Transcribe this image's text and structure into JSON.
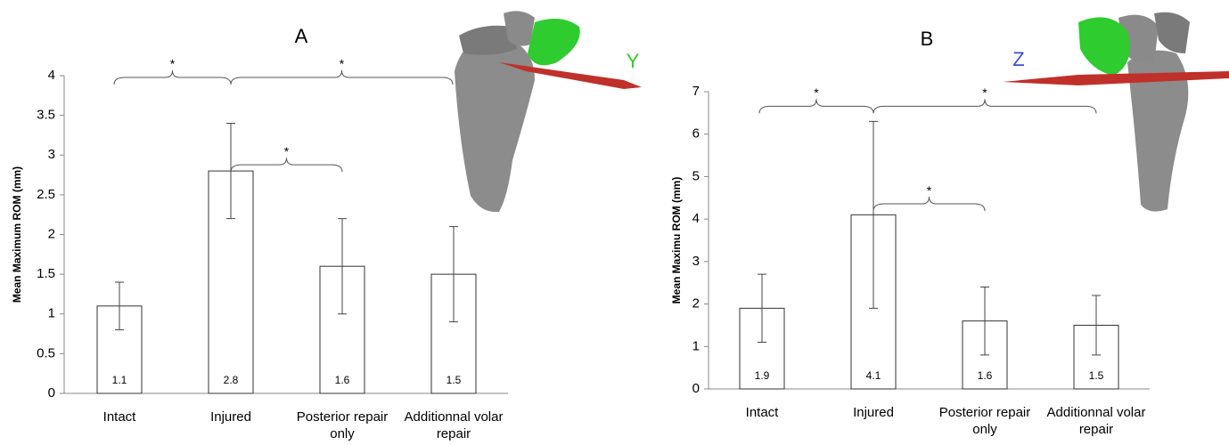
{
  "chart_data": [
    {
      "type": "bar",
      "title": "A",
      "y_label": "Mean Maximum ROM (mm)",
      "categories": [
        "Intact",
        "Injured",
        "Posterior repair only",
        "Additionnal volar repair"
      ],
      "values": [
        1.1,
        2.8,
        1.6,
        1.5
      ],
      "errors": [
        0.3,
        0.6,
        0.6,
        0.6
      ],
      "color": "#ffffff",
      "ylim": [
        0,
        4
      ],
      "yticks": [
        0,
        0.5,
        1,
        1.5,
        2,
        2.5,
        3,
        3.5,
        4
      ],
      "significance": [
        {
          "from": 0,
          "to": 1,
          "label": "*"
        },
        {
          "from": 1,
          "to": 3,
          "label": "*"
        },
        {
          "from": 1,
          "to": 2,
          "label": "*"
        }
      ],
      "axis_marker": "Y"
    },
    {
      "type": "bar",
      "title": "B",
      "y_label": "Mean Maximu ROM (mm)",
      "categories": [
        "Intact",
        "Injured",
        "Posterior repair only",
        "Additionnal volar repair"
      ],
      "values": [
        1.9,
        4.1,
        1.6,
        1.5
      ],
      "errors": [
        0.8,
        2.2,
        0.8,
        0.7
      ],
      "color": "#ffffff",
      "ylim": [
        0,
        7
      ],
      "yticks": [
        0,
        1,
        2,
        3,
        4,
        5,
        6,
        7
      ],
      "significance": [
        {
          "from": 0,
          "to": 1,
          "label": "*"
        },
        {
          "from": 1,
          "to": 3,
          "label": "*"
        },
        {
          "from": 1,
          "to": 2,
          "label": "*"
        }
      ],
      "axis_marker": "Z"
    }
  ]
}
